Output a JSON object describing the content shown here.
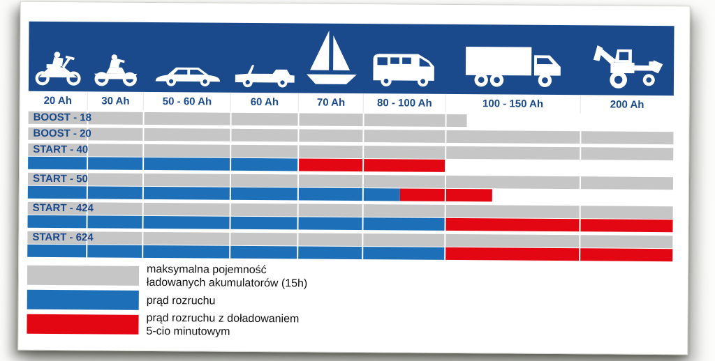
{
  "page": {
    "description": "Battery charger compatibility chart"
  },
  "header": {
    "icons": [
      {
        "name": "motorcycle"
      },
      {
        "name": "atv-quad"
      },
      {
        "name": "car"
      },
      {
        "name": "jeep"
      },
      {
        "name": "sailboat"
      },
      {
        "name": "camper-van"
      },
      {
        "name": "truck"
      },
      {
        "name": "backhoe-loader"
      }
    ]
  },
  "chart_data": {
    "type": "bar",
    "orientation": "horizontal",
    "categories": [
      "20 Ah",
      "30 Ah",
      "50 - 60 Ah",
      "60 Ah",
      "70 Ah",
      "80 - 100 Ah",
      "100 - 150 Ah",
      "200 Ah"
    ],
    "column_bounds_pct": [
      0,
      9.2,
      17.9,
      31.4,
      41.9,
      52.0,
      64.7,
      85.6,
      100
    ],
    "colors": {
      "navy": "#1a4a8c",
      "gray": "#c6c6c6",
      "blue": "#1d70b7",
      "red": "#e30613"
    },
    "series_meaning": {
      "gray": "maksymalna pojemność ładowanych akumulatorów (15h)",
      "blue": "prąd rozruchu",
      "red": "prąd rozruchu z doładowaniem 5-cio minutowym"
    },
    "rows": [
      {
        "label": "BOOST - 18",
        "approx_ah": {
          "gray": "do ok. 110 Ah"
        },
        "bars": [
          [
            {
              "c": "gray",
              "s": 0,
              "e": 68
            }
          ]
        ]
      },
      {
        "label": "BOOST - 20",
        "approx_ah": {
          "gray": "do 200 Ah"
        },
        "bars": [
          [
            {
              "c": "gray",
              "s": 0,
              "e": 100
            }
          ]
        ]
      },
      {
        "label": "START - 40",
        "approx_ah": {
          "gray": "do 200 Ah",
          "blue": "do ok. 60 Ah",
          "red": "do ok. 100 Ah"
        },
        "bars": [
          [
            {
              "c": "gray",
              "s": 0,
              "e": 100
            }
          ],
          [
            {
              "c": "blue",
              "s": 0,
              "e": 41.9
            },
            {
              "c": "red",
              "s": 41.9,
              "e": 64.7
            }
          ]
        ]
      },
      {
        "label": "START - 50",
        "approx_ah": {
          "gray": "do 200 Ah",
          "blue": "do ok. 90 Ah",
          "red": "do ok. 115 Ah"
        },
        "bars": [
          [
            {
              "c": "gray",
              "s": 0,
              "e": 100
            }
          ],
          [
            {
              "c": "blue",
              "s": 0,
              "e": 57.7
            },
            {
              "c": "red",
              "s": 57.7,
              "e": 72
            }
          ]
        ]
      },
      {
        "label": "START - 424",
        "approx_ah": {
          "gray": "do 200 Ah",
          "blue": "do ok. 100 Ah",
          "red": "do 200 Ah"
        },
        "bars": [
          [
            {
              "c": "gray",
              "s": 0,
              "e": 100
            }
          ],
          [
            {
              "c": "blue",
              "s": 0,
              "e": 64.7
            },
            {
              "c": "red",
              "s": 64.7,
              "e": 100
            }
          ]
        ]
      },
      {
        "label": "START - 624",
        "approx_ah": {
          "gray": "do 200 Ah",
          "blue": "do ok. 100 Ah",
          "red": "do 200 Ah"
        },
        "bars": [
          [
            {
              "c": "gray",
              "s": 0,
              "e": 100
            }
          ],
          [
            {
              "c": "blue",
              "s": 0,
              "e": 64.7
            },
            {
              "c": "red",
              "s": 64.7,
              "e": 100
            }
          ]
        ]
      }
    ]
  },
  "legend": {
    "items": [
      {
        "key": "gray",
        "color": "#c6c6c6",
        "lines": [
          "maksymalna pojemność",
          "ładowanych akumulatorów (15h)"
        ]
      },
      {
        "key": "blue",
        "color": "#1d70b7",
        "lines": [
          "prąd rozruchu"
        ]
      },
      {
        "key": "red",
        "color": "#e30613",
        "lines": [
          "prąd rozruchu z doładowaniem",
          "5-cio minutowym"
        ]
      }
    ]
  }
}
